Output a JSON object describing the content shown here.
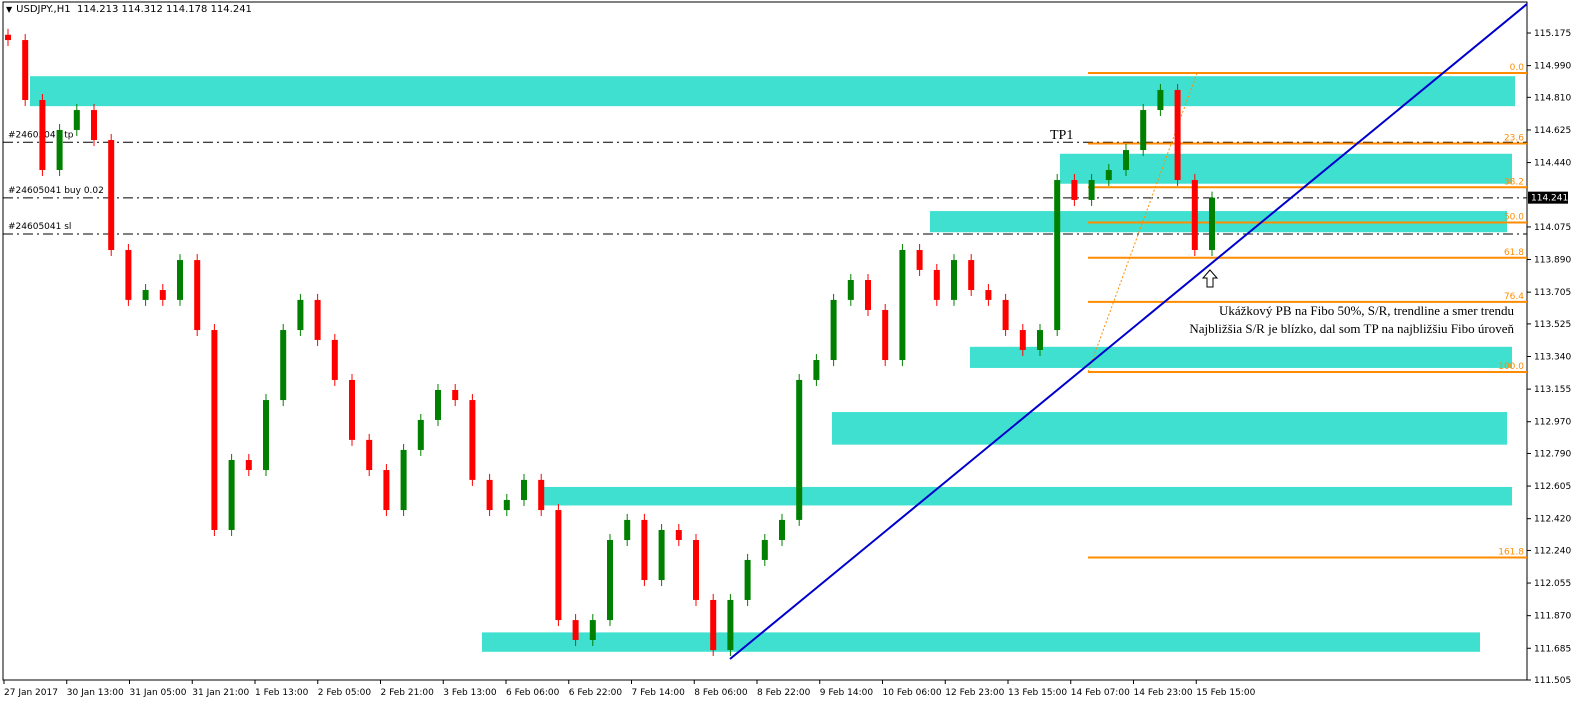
{
  "header": {
    "symbol": "USDJPY.,H1",
    "ohlc": "114.213 114.312 114.178 114.241"
  },
  "chart_data": {
    "type": "candlestick",
    "ylim": [
      111.505,
      115.175
    ],
    "y_ticks": [
      "115.175",
      "114.990",
      "114.810",
      "114.625",
      "114.440",
      "114.241",
      "114.075",
      "113.890",
      "113.705",
      "113.525",
      "113.340",
      "113.155",
      "112.970",
      "112.790",
      "112.605",
      "112.420",
      "112.240",
      "112.055",
      "111.870",
      "111.685",
      "111.505"
    ],
    "x_ticks": [
      "27 Jan 2017",
      "30 Jan 13:00",
      "31 Jan 05:00",
      "31 Jan 21:00",
      "1 Feb 13:00",
      "2 Feb 05:00",
      "2 Feb 21:00",
      "3 Feb 13:00",
      "6 Feb 06:00",
      "6 Feb 22:00",
      "7 Feb 14:00",
      "8 Feb 06:00",
      "8 Feb 22:00",
      "9 Feb 14:00",
      "10 Feb 06:00",
      "12 Feb 23:00",
      "13 Feb 15:00",
      "14 Feb 07:00",
      "14 Feb 23:00",
      "15 Feb 15:00"
    ],
    "closes": [
      115.135,
      114.795,
      114.398,
      114.625,
      114.738,
      114.568,
      113.944,
      113.661,
      113.717,
      113.661,
      113.887,
      113.49,
      112.356,
      112.753,
      112.696,
      113.093,
      113.49,
      113.661,
      113.434,
      113.207,
      112.867,
      112.696,
      112.469,
      112.81,
      112.98,
      113.15,
      113.093,
      112.64,
      112.469,
      112.526,
      112.64,
      112.469,
      111.845,
      111.732,
      111.845,
      112.299,
      112.413,
      112.072,
      112.356,
      112.299,
      111.959,
      111.675,
      111.959,
      112.186,
      112.299,
      112.413,
      113.207,
      113.32,
      113.661,
      113.774,
      113.604,
      113.32,
      113.944,
      113.831,
      113.661,
      113.887,
      113.717,
      113.661,
      113.49,
      113.377,
      113.49,
      114.341,
      114.228,
      114.341,
      114.398,
      114.511,
      114.738,
      114.852,
      114.341,
      113.944,
      114.241
    ],
    "current_price": "114.241",
    "colors": {
      "up": "#008000",
      "down": "#ff0000",
      "zone": "#40E0D0",
      "fibo": "#FF8C00",
      "trendline": "#0000CD"
    },
    "zones": [
      [
        114.76,
        114.93
      ],
      [
        114.32,
        114.49
      ],
      [
        114.045,
        114.165
      ],
      [
        113.275,
        113.395
      ],
      [
        112.84,
        113.025
      ],
      [
        112.495,
        112.6
      ],
      [
        111.665,
        111.775
      ]
    ],
    "fibo": {
      "levels": [
        {
          "label": "0.0",
          "price": 114.948
        },
        {
          "label": "23.6",
          "price": 114.548
        },
        {
          "label": "38.2",
          "price": 114.3
        },
        {
          "label": "50.0",
          "price": 114.1
        },
        {
          "label": "61.8",
          "price": 113.9
        },
        {
          "label": "76.4",
          "price": 113.65
        },
        {
          "label": "100.0",
          "price": 113.252
        },
        {
          "label": "161.8",
          "price": 112.2
        }
      ]
    },
    "order_lines": [
      {
        "label": "#24605041 tp",
        "price": 114.555
      },
      {
        "label": "#24605041 buy 0.02",
        "price": 114.24
      },
      {
        "label": "#24605041 sl",
        "price": 114.035
      }
    ],
    "annotations": {
      "tp1": "TP1",
      "note_line1": "Ukážkový PB na Fibo 50%, S/R, trendline a smer trendu",
      "note_line2": "Najbližšia S/R je blízko, dal som TP na najbližšiu Fibo úroveň"
    }
  }
}
